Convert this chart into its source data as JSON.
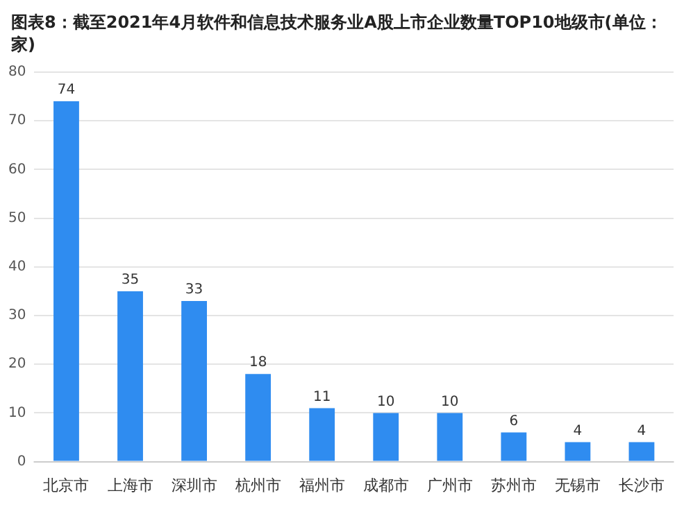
{
  "chart_data": {
    "type": "bar",
    "title": "图表8：截至2021年4月软件和信息技术服务业A股上市企业数量TOP10地级市(单位：家)",
    "categories": [
      "北京市",
      "上海市",
      "深圳市",
      "杭州市",
      "福州市",
      "成都市",
      "广州市",
      "苏州市",
      "无锡市",
      "长沙市"
    ],
    "values": [
      74,
      35,
      33,
      18,
      11,
      10,
      10,
      6,
      4,
      4
    ],
    "color": "#2f8cf0",
    "ylim": [
      0,
      80
    ],
    "yticks": [
      0,
      10,
      20,
      30,
      40,
      50,
      60,
      70,
      80
    ],
    "grid": "y",
    "data_labels": true
  }
}
